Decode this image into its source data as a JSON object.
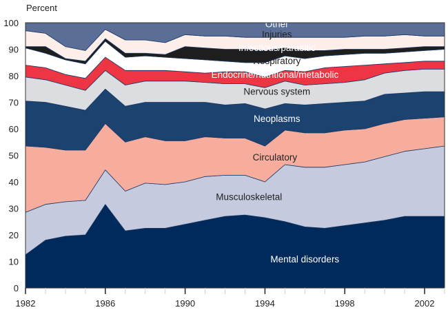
{
  "chart_data": {
    "type": "area",
    "stacked": true,
    "title": "",
    "xlabel": "",
    "ylabel": "Percent",
    "xlim": [
      1982,
      2003
    ],
    "ylim": [
      0,
      100
    ],
    "x_ticks": [
      1982,
      1986,
      1990,
      1994,
      1998,
      2002
    ],
    "y_ticks": [
      0,
      10,
      20,
      30,
      40,
      50,
      60,
      70,
      80,
      90,
      100
    ],
    "grid": false,
    "legend": "inline-labels",
    "x": [
      1982,
      1983,
      1984,
      1985,
      1986,
      1987,
      1988,
      1989,
      1990,
      1991,
      1992,
      1993,
      1994,
      1995,
      1996,
      1997,
      1998,
      1999,
      2000,
      2001,
      2002,
      2003
    ],
    "series": [
      {
        "name": "Mental disorders",
        "color": "#002a5c",
        "label_color": "#ffffff",
        "label_at": [
          1996,
          10.5
        ],
        "values": [
          12.5,
          18,
          19.5,
          20,
          31.5,
          21.5,
          22.5,
          22.5,
          24,
          25.5,
          27,
          27.5,
          26.5,
          25,
          23,
          22.5,
          23.5,
          24.5,
          25.5,
          27,
          27,
          27
        ]
      },
      {
        "name": "Musculoskeletal",
        "color": "#c5cadf",
        "label_color": "#222222",
        "label_at": [
          1993.2,
          34
        ],
        "values": [
          16,
          13.5,
          13,
          13,
          13,
          15,
          17,
          16.5,
          16,
          16.5,
          15.5,
          15,
          13.5,
          21.5,
          22.5,
          23,
          23,
          23,
          24,
          24.5,
          25.5,
          26.5
        ]
      },
      {
        "name": "Circulatory",
        "color": "#f7ad9e",
        "label_color": "#222222",
        "label_at": [
          1994.5,
          49
        ],
        "values": [
          25,
          21.5,
          19.5,
          19,
          17.5,
          18.5,
          17.5,
          16.5,
          15.5,
          15,
          14,
          14,
          13.5,
          13,
          13,
          13,
          13,
          12.5,
          12.5,
          12,
          11.5,
          11
        ]
      },
      {
        "name": "Neoplasms",
        "color": "#1c4270",
        "label_color": "#ffffff",
        "label_at": [
          1994.6,
          63.5
        ],
        "values": [
          17,
          17,
          16.5,
          15,
          13,
          13.5,
          13,
          14.5,
          14.5,
          13,
          12.5,
          13,
          14,
          10,
          10.5,
          11,
          10.5,
          10.5,
          11,
          10,
          10,
          9.5
        ]
      },
      {
        "name": "Nervous system",
        "color": "#dcdde0",
        "label_color": "#222222",
        "label_at": [
          1994.6,
          73.8
        ],
        "values": [
          9,
          8.5,
          8,
          7.5,
          7,
          8,
          8,
          8,
          8,
          7.5,
          8,
          7.5,
          8,
          8.5,
          7.5,
          7.5,
          7.5,
          8,
          8,
          8.5,
          8.5,
          8.5
        ]
      },
      {
        "name": "Endocrine/nutritional/metabolic",
        "color": "#ed3543",
        "label_color": "#ffffff",
        "label_at": [
          1994.5,
          80.2
        ],
        "values": [
          4.5,
          4.5,
          4,
          4.5,
          5,
          5.5,
          4,
          4,
          3.5,
          3.5,
          4.5,
          4.5,
          4,
          4,
          5,
          6,
          6,
          5.5,
          3.5,
          3,
          3,
          3
        ]
      },
      {
        "name": "Respiratory",
        "color": "#ffffff",
        "label_color": "#222222",
        "label_at": [
          1994.6,
          85.4
        ],
        "values": [
          6.5,
          5.5,
          5.5,
          5.5,
          6,
          5,
          5.5,
          5,
          5,
          5,
          4,
          3.5,
          5.5,
          5.5,
          5,
          4.5,
          4.5,
          4.5,
          4,
          4,
          4,
          4.5
        ]
      },
      {
        "name": "Infectious/parasitic",
        "color": "#1e1e1e",
        "label_color": "#ffffff",
        "label_at": [
          1994.6,
          90.3
        ],
        "values": [
          0.5,
          2.5,
          0.5,
          1,
          1,
          1.5,
          1,
          1,
          4.5,
          4.5,
          4.5,
          5,
          4.5,
          3,
          3,
          2,
          2,
          1.5,
          1.5,
          1.5,
          1.5,
          1
        ]
      },
      {
        "name": "Injuries",
        "color": "#fdeeea",
        "label_color": "#222222",
        "label_at": [
          1994.6,
          95.4
        ],
        "values": [
          6,
          5,
          4.5,
          4,
          3.5,
          5,
          5,
          4.5,
          4.5,
          4.5,
          5,
          4.5,
          5,
          4,
          5,
          5,
          4.5,
          5,
          5,
          5,
          4,
          4
        ]
      },
      {
        "name": "Other",
        "color": "#5a6e98",
        "label_color": "#ffffff",
        "label_at": [
          1994.6,
          99.3
        ],
        "values": [
          3,
          4,
          9,
          10.5,
          2.5,
          6.5,
          6.5,
          7.5,
          4.5,
          5,
          5,
          5.5,
          5.5,
          5.5,
          5.5,
          5.5,
          5.5,
          5,
          5,
          4.5,
          5,
          5
        ]
      }
    ]
  }
}
